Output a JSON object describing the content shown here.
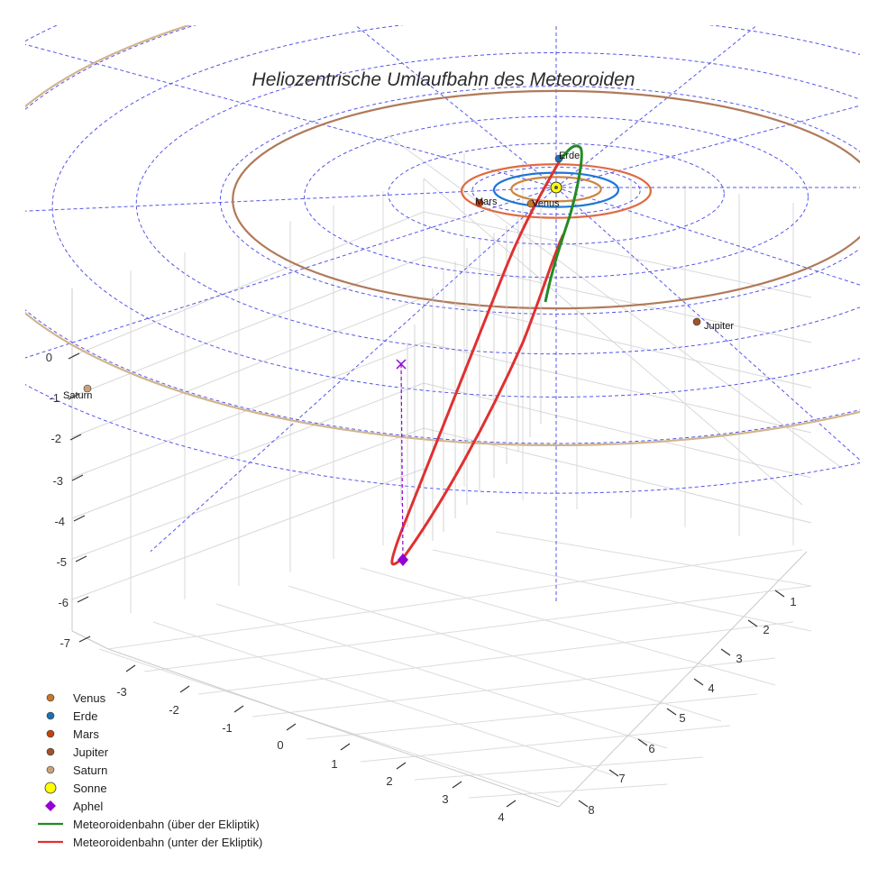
{
  "chart_data": {
    "type": "3d-line",
    "title": "Heliozentrische Umlaufbahn des Meteoroiden",
    "axes": {
      "x_ticks": [
        -3,
        -2,
        -1,
        0,
        1,
        2,
        3,
        4
      ],
      "y_ticks": [
        1,
        2,
        3,
        4,
        5,
        6,
        7,
        8
      ],
      "z_ticks": [
        0,
        -1,
        -2,
        -3,
        -4,
        -5,
        -6,
        -7
      ],
      "xlim": [
        -3.5,
        4.5
      ],
      "ylim": [
        0.5,
        8.5
      ],
      "zlim": [
        -7.5,
        0.5
      ],
      "grid": true
    },
    "planets": [
      {
        "name": "Venus",
        "radius_au": 0.72,
        "color": "#cd853f",
        "marker_color": "#c8782a",
        "label": "Venus"
      },
      {
        "name": "Erde",
        "radius_au": 1.0,
        "color": "#1f77d4",
        "marker_color": "#1f6fb4",
        "label": "Erde"
      },
      {
        "name": "Mars",
        "radius_au": 1.52,
        "color": "#e06a40",
        "marker_color": "#c1440e",
        "label": "Mars"
      },
      {
        "name": "Jupiter",
        "radius_au": 5.2,
        "color": "#b07a5a",
        "marker_color": "#a0522d",
        "label": "Jupiter"
      },
      {
        "name": "Saturn",
        "radius_au": 9.5,
        "color": "#d2b48c",
        "marker_color": "#c9a27a",
        "label": "Saturn"
      }
    ],
    "sun": {
      "label": "Sonne",
      "color": "#ffff00"
    },
    "aphel": {
      "label": "Aphel",
      "x": 2.0,
      "y": 8.0,
      "z": -5.0,
      "color": "#9400d3"
    },
    "meteoroid_orbit": {
      "series": [
        {
          "name": "Meteoroidenbahn (über der Ekliptik)",
          "color": "#228b22"
        },
        {
          "name": "Meteoroidenbahn (unter der Ekliptik)",
          "color": "#e03030"
        }
      ]
    },
    "legend": {
      "position": "bottom-left",
      "entries": [
        {
          "label": "Venus",
          "marker": "circle",
          "color": "#c8782a"
        },
        {
          "label": "Erde",
          "marker": "circle",
          "color": "#1f6fb4"
        },
        {
          "label": "Mars",
          "marker": "circle",
          "color": "#c1440e"
        },
        {
          "label": "Jupiter",
          "marker": "circle",
          "color": "#a0522d"
        },
        {
          "label": "Saturn",
          "marker": "circle",
          "color": "#c9a27a"
        },
        {
          "label": "Sonne",
          "marker": "circle-large",
          "color": "#ffff00"
        },
        {
          "label": "Aphel",
          "marker": "diamond",
          "color": "#9400d3"
        },
        {
          "label": "Meteoroidenbahn (über der Ekliptik)",
          "marker": "line",
          "color": "#228b22"
        },
        {
          "label": "Meteoroidenbahn (unter der Ekliptik)",
          "marker": "line",
          "color": "#e03030"
        }
      ]
    }
  }
}
